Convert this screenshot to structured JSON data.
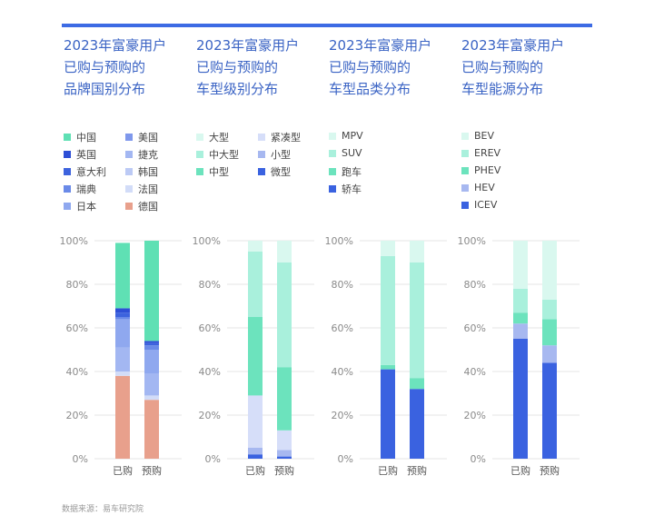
{
  "source": "数据来源：易车研究院",
  "x_labels": [
    "已购",
    "预购"
  ],
  "y_ticks": [
    "0%",
    "20%",
    "40%",
    "60%",
    "80%",
    "100%"
  ],
  "chart_data": [
    {
      "type": "bar",
      "stacked": true,
      "title_lines": [
        "2023年富豪用户",
        "已购与预购的",
        "品牌国别分布"
      ],
      "categories": [
        "已购",
        "预购"
      ],
      "ylim": [
        0,
        100
      ],
      "series": [
        {
          "name": "中国",
          "color": "#5fe0b4",
          "values": [
            30,
            46
          ]
        },
        {
          "name": "英国",
          "color": "#2d4fd6",
          "values": [
            2,
            1
          ]
        },
        {
          "name": "意大利",
          "color": "#3d63de",
          "values": [
            2,
            1
          ]
        },
        {
          "name": "瑞典",
          "color": "#6a8ae8",
          "values": [
            1,
            2
          ]
        },
        {
          "name": "日本",
          "color": "#8fa8ef",
          "values": [
            13,
            11
          ]
        },
        {
          "name": "美国",
          "color": "#7f98ec",
          "values": [
            0,
            0
          ]
        },
        {
          "name": "捷克",
          "color": "#a3b7f2",
          "values": [
            11,
            10
          ]
        },
        {
          "name": "韩国",
          "color": "#bccaf5",
          "values": [
            0,
            0
          ]
        },
        {
          "name": "法国",
          "color": "#d2dcf8",
          "values": [
            2,
            2
          ]
        },
        {
          "name": "德国",
          "color": "#e8a08c",
          "values": [
            38,
            27
          ]
        }
      ],
      "draw_order": [
        "德国",
        "法国",
        "韩国",
        "捷克",
        "美国",
        "日本",
        "瑞典",
        "意大利",
        "英国",
        "中国"
      ]
    },
    {
      "type": "bar",
      "stacked": true,
      "title_lines": [
        "2023年富豪用户",
        "已购与预购的",
        "车型级别分布"
      ],
      "categories": [
        "已购",
        "预购"
      ],
      "ylim": [
        0,
        100
      ],
      "series": [
        {
          "name": "大型",
          "color": "#d9f8ef",
          "values": [
            5,
            10
          ]
        },
        {
          "name": "中大型",
          "color": "#a9f0dc",
          "values": [
            30,
            48
          ]
        },
        {
          "name": "中型",
          "color": "#6ce3bd",
          "values": [
            36,
            29
          ]
        },
        {
          "name": "紧凑型",
          "color": "#d6def9",
          "values": [
            24,
            9
          ]
        },
        {
          "name": "小型",
          "color": "#a7b8f0",
          "values": [
            3,
            3
          ]
        },
        {
          "name": "微型",
          "color": "#3a62e0",
          "values": [
            2,
            1
          ]
        }
      ],
      "draw_order": [
        "微型",
        "小型",
        "紧凑型",
        "中型",
        "中大型",
        "大型"
      ]
    },
    {
      "type": "bar",
      "stacked": true,
      "title_lines": [
        "2023年富豪用户",
        "已购与预购的",
        "车型品类分布"
      ],
      "categories": [
        "已购",
        "预购"
      ],
      "ylim": [
        0,
        100
      ],
      "series": [
        {
          "name": "MPV",
          "color": "#d9f8ef",
          "values": [
            7,
            10
          ]
        },
        {
          "name": "SUV",
          "color": "#a9f0dc",
          "values": [
            50,
            53
          ]
        },
        {
          "name": "跑车",
          "color": "#6ce3bd",
          "values": [
            2,
            5
          ]
        },
        {
          "name": "轿车",
          "color": "#3a62e0",
          "values": [
            41,
            32
          ]
        }
      ],
      "draw_order": [
        "轿车",
        "跑车",
        "SUV",
        "MPV"
      ]
    },
    {
      "type": "bar",
      "stacked": true,
      "title_lines": [
        "2023年富豪用户",
        "已购与预购的",
        "车型能源分布"
      ],
      "categories": [
        "已购",
        "预购"
      ],
      "ylim": [
        0,
        100
      ],
      "series": [
        {
          "name": "BEV",
          "color": "#d9f8ef",
          "values": [
            22,
            27
          ]
        },
        {
          "name": "EREV",
          "color": "#a9f0dc",
          "values": [
            11,
            9
          ]
        },
        {
          "name": "PHEV",
          "color": "#6ce3bd",
          "values": [
            5,
            12
          ]
        },
        {
          "name": "HEV",
          "color": "#a7b8f0",
          "values": [
            7,
            8
          ]
        },
        {
          "name": "ICEV",
          "color": "#3a62e0",
          "values": [
            55,
            44
          ]
        }
      ],
      "draw_order": [
        "ICEV",
        "HEV",
        "PHEV",
        "EREV",
        "BEV"
      ]
    }
  ]
}
